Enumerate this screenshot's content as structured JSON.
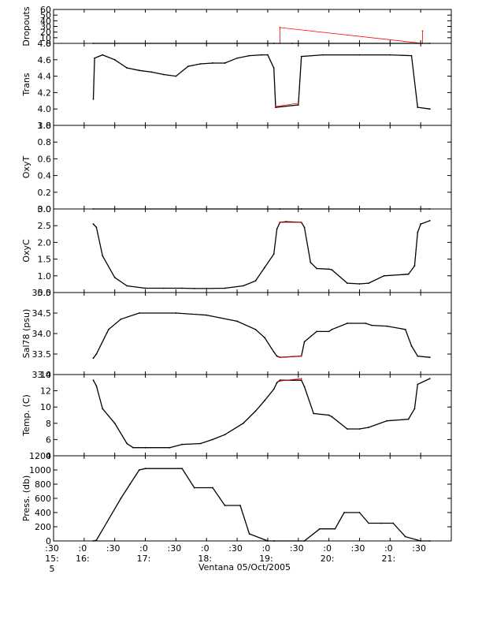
{
  "chart_data": [
    {
      "type": "line",
      "panel": "Dropouts",
      "ylabel": "Dropouts",
      "ylim": [
        0,
        60
      ],
      "yticks": [
        "0",
        "10",
        "20",
        "30",
        "40",
        "50",
        "60"
      ],
      "series": [
        {
          "color": "#000000",
          "x": [
            16.15,
            19.1,
            19.4,
            21.65
          ],
          "y": [
            0,
            0,
            0,
            0
          ]
        },
        {
          "color": "#ff0000",
          "x": [
            19.2,
            19.2,
            21.53,
            21.53
          ],
          "y": [
            0,
            28,
            0,
            22
          ]
        }
      ]
    },
    {
      "type": "line",
      "panel": "Trans",
      "ylabel": "Trans",
      "ylim": [
        3.8,
        4.8
      ],
      "yticks": [
        "3.8",
        "4.0",
        "4.2",
        "4.4",
        "4.6",
        "4.8"
      ],
      "series": [
        {
          "color": "#000000",
          "x": [
            16.15,
            16.17,
            16.3,
            16.5,
            16.7,
            16.9,
            17.1,
            17.3,
            17.5,
            17.7,
            17.9,
            18.1,
            18.3,
            18.5,
            18.7,
            18.9,
            19.0,
            19.1,
            19.13,
            19.5,
            19.55,
            19.9,
            20.5,
            21.0,
            21.35,
            21.45,
            21.65
          ],
          "y": [
            4.12,
            4.62,
            4.66,
            4.6,
            4.5,
            4.47,
            4.45,
            4.42,
            4.4,
            4.52,
            4.55,
            4.56,
            4.56,
            4.62,
            4.65,
            4.66,
            4.66,
            4.5,
            4.02,
            4.05,
            4.64,
            4.66,
            4.66,
            4.66,
            4.65,
            4.02,
            4.0
          ]
        },
        {
          "color": "#ff0000",
          "x": [
            19.13,
            19.5
          ],
          "y": [
            4.03,
            4.07
          ]
        }
      ]
    },
    {
      "type": "line",
      "panel": "OxyT",
      "ylabel": "OxyT",
      "ylim": [
        0,
        1
      ],
      "yticks": [
        "0.0",
        "0.2",
        "0.4",
        "0.6",
        "0.8",
        "1.0"
      ],
      "series": [
        {
          "color": "#000000",
          "x": [
            16.15,
            19.2,
            19.55,
            21.65
          ],
          "y": [
            0,
            0,
            0,
            0
          ]
        },
        {
          "color": "#ff0000",
          "x": [
            19.2,
            19.55
          ],
          "y": [
            0,
            0
          ]
        }
      ]
    },
    {
      "type": "line",
      "panel": "OxyC",
      "ylabel": "OxyC",
      "ylim": [
        0.5,
        3.0
      ],
      "yticks": [
        "0.5",
        "1.0",
        "1.5",
        "2.0",
        "2.5",
        "3.0"
      ],
      "series": [
        {
          "color": "#000000",
          "x": [
            16.15,
            16.2,
            16.3,
            16.5,
            16.7,
            17.0,
            17.3,
            17.6,
            17.8,
            18.0,
            18.3,
            18.6,
            18.8,
            18.95,
            19.1,
            19.15,
            19.2,
            19.3,
            19.55,
            19.6,
            19.7,
            19.8,
            20.0,
            20.05,
            20.3,
            20.5,
            20.65,
            20.9,
            21.3,
            21.4,
            21.45,
            21.5,
            21.65
          ],
          "y": [
            2.55,
            2.45,
            1.6,
            0.95,
            0.7,
            0.63,
            0.63,
            0.63,
            0.62,
            0.62,
            0.63,
            0.7,
            0.85,
            1.25,
            1.65,
            2.4,
            2.6,
            2.62,
            2.6,
            2.45,
            1.4,
            1.22,
            1.2,
            1.18,
            0.78,
            0.76,
            0.78,
            1.0,
            1.05,
            1.3,
            2.3,
            2.55,
            2.65
          ]
        },
        {
          "color": "#ff0000",
          "x": [
            19.2,
            19.55
          ],
          "y": [
            2.6,
            2.6
          ]
        }
      ]
    },
    {
      "type": "line",
      "panel": "Sal78",
      "ylabel": "Sal78 (psu)",
      "ylim": [
        33.0,
        35.0
      ],
      "yticks": [
        "33.0",
        "33.5",
        "34.0",
        "34.5",
        "35.0"
      ],
      "series": [
        {
          "color": "#000000",
          "x": [
            16.15,
            16.2,
            16.4,
            16.6,
            16.9,
            17.5,
            18.0,
            18.5,
            18.8,
            18.95,
            19.1,
            19.15,
            19.2,
            19.55,
            19.6,
            19.8,
            20.0,
            20.05,
            20.3,
            20.6,
            20.7,
            20.95,
            21.25,
            21.35,
            21.45,
            21.65
          ],
          "y": [
            33.4,
            33.5,
            34.1,
            34.35,
            34.5,
            34.5,
            34.45,
            34.3,
            34.1,
            33.9,
            33.55,
            33.45,
            33.42,
            33.45,
            33.8,
            34.05,
            34.05,
            34.1,
            34.25,
            34.25,
            34.2,
            34.18,
            34.1,
            33.7,
            33.45,
            33.42
          ]
        },
        {
          "color": "#ff0000",
          "x": [
            19.2,
            19.55
          ],
          "y": [
            33.42,
            33.45
          ]
        }
      ]
    },
    {
      "type": "line",
      "panel": "Temp",
      "ylabel": "Temp. (C)",
      "ylim": [
        4,
        14
      ],
      "yticks": [
        "4",
        "6",
        "8",
        "10",
        "12",
        "14"
      ],
      "series": [
        {
          "color": "#000000",
          "x": [
            16.15,
            16.2,
            16.3,
            16.5,
            16.7,
            16.8,
            17.0,
            17.4,
            17.6,
            17.9,
            18.1,
            18.3,
            18.6,
            18.8,
            18.95,
            19.1,
            19.15,
            19.2,
            19.55,
            19.6,
            19.75,
            20.0,
            20.05,
            20.3,
            20.5,
            20.65,
            20.95,
            21.3,
            21.4,
            21.45,
            21.65
          ],
          "y": [
            13.3,
            12.6,
            9.8,
            8.0,
            5.5,
            5.0,
            5.0,
            5.0,
            5.4,
            5.5,
            6.0,
            6.6,
            8.0,
            9.5,
            10.8,
            12.2,
            13.0,
            13.3,
            13.3,
            12.5,
            9.2,
            9.0,
            8.8,
            7.3,
            7.3,
            7.5,
            8.3,
            8.5,
            9.8,
            12.8,
            13.5
          ]
        },
        {
          "color": "#ff0000",
          "x": [
            19.2,
            19.55
          ],
          "y": [
            13.2,
            13.5
          ]
        }
      ]
    },
    {
      "type": "line",
      "panel": "Press",
      "ylabel": "Press. (db)",
      "ylim": [
        0,
        1200
      ],
      "yticks": [
        "0",
        "200",
        "400",
        "600",
        "800",
        "1000",
        "1200"
      ],
      "series": [
        {
          "color": "#000000",
          "x": [
            16.15,
            16.2,
            16.6,
            16.75,
            16.9,
            17.0,
            17.6,
            17.8,
            18.1,
            18.3,
            18.55,
            18.7,
            19.0,
            19.1,
            19.6,
            19.85,
            20.1,
            20.25,
            20.5,
            20.65,
            20.85,
            21.05,
            21.25,
            21.5,
            21.65
          ],
          "y": [
            0,
            10,
            600,
            800,
            1000,
            1020,
            1020,
            750,
            750,
            500,
            500,
            100,
            0,
            0,
            0,
            170,
            170,
            400,
            400,
            250,
            250,
            250,
            60,
            0,
            0
          ]
        }
      ]
    }
  ],
  "x_axis": {
    "range": [
      15.5,
      22.0
    ],
    "tick_labels": [
      {
        "x": 15.5,
        "line1": ":30",
        "line2": "15:",
        "line3": "5"
      },
      {
        "x": 16.0,
        "line1": ":0",
        "line2": "16:",
        "line3": ""
      },
      {
        "x": 16.5,
        "line1": ":30",
        "line2": "",
        "line3": ""
      },
      {
        "x": 17.0,
        "line1": ":0",
        "line2": "17:",
        "line3": ""
      },
      {
        "x": 17.5,
        "line1": ":30",
        "line2": "",
        "line3": ""
      },
      {
        "x": 18.0,
        "line1": ":0",
        "line2": "18:",
        "line3": ""
      },
      {
        "x": 18.5,
        "line1": ":30",
        "line2": "",
        "line3": ""
      },
      {
        "x": 19.0,
        "line1": ":0",
        "line2": "19:",
        "line3": ""
      },
      {
        "x": 19.5,
        "line1": ":30",
        "line2": "",
        "line3": ""
      },
      {
        "x": 20.0,
        "line1": ":0",
        "line2": "20:",
        "line3": ""
      },
      {
        "x": 20.5,
        "line1": ":30",
        "line2": "",
        "line3": ""
      },
      {
        "x": 21.0,
        "line1": ":0",
        "line2": "21:",
        "line3": ""
      },
      {
        "x": 21.5,
        "line1": ":30",
        "line2": "",
        "line3": ""
      }
    ],
    "caption": "Ventana 05/Oct/2005"
  }
}
